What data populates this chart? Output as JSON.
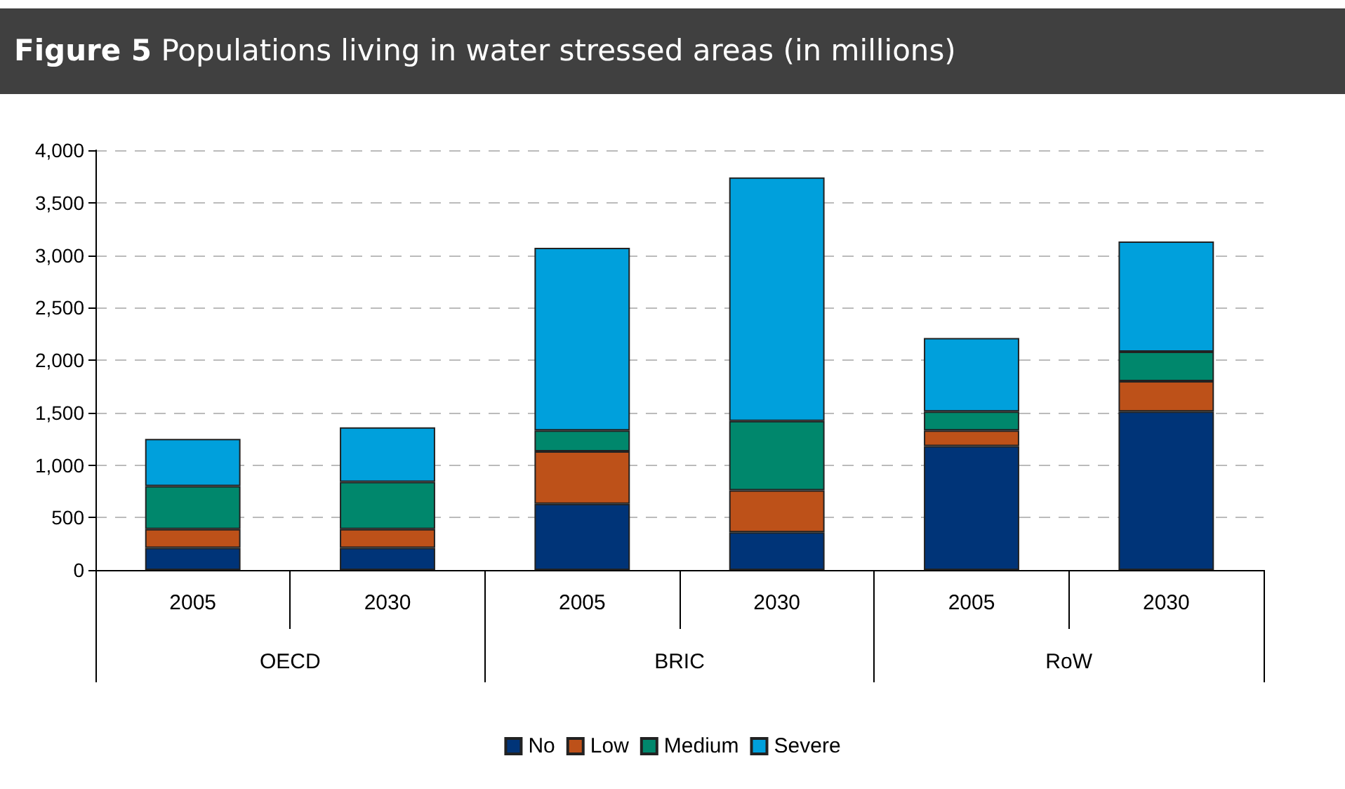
{
  "chart_data": {
    "type": "bar",
    "title": "Figure 5 Populations living in water stressed areas (in millions)",
    "categories": [
      "2005",
      "2030",
      "2005",
      "2030",
      "2005",
      "2030"
    ],
    "annotations": [
      "OECD",
      "BRIC",
      "RoW"
    ],
    "stacked": true,
    "series": [
      {
        "name": "No",
        "color": "#003478",
        "values": [
          210,
          210,
          630,
          360,
          1180,
          1510
        ]
      },
      {
        "name": "Low",
        "color": "#bd5119",
        "values": [
          180,
          180,
          500,
          400,
          150,
          290
        ]
      },
      {
        "name": "Medium",
        "color": "#00876c",
        "values": [
          410,
          450,
          200,
          660,
          180,
          280
        ]
      },
      {
        "name": "Severe",
        "color": "#00a0dc",
        "values": [
          450,
          520,
          1740,
          2320,
          700,
          1050
        ]
      }
    ],
    "ylim": [
      0,
      4000
    ],
    "yticks": [
      0,
      500,
      {
        "value": 1000,
        "label": "1,000"
      },
      {
        "value": 1500,
        "label": "1,500"
      },
      {
        "value": 2000,
        "label": "2,000"
      },
      {
        "value": 2500,
        "label": "2,500"
      },
      {
        "value": 3000,
        "label": "3,000"
      },
      {
        "value": 3500,
        "label": "3,500"
      },
      {
        "value": 4000,
        "label": "4,000"
      }
    ],
    "grid": "y",
    "legend": "bottom"
  }
}
